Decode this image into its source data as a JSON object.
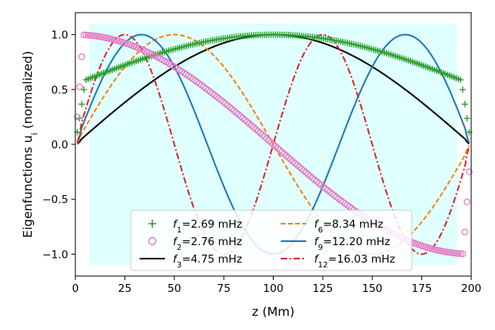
{
  "chart_data": {
    "type": "line",
    "title": "",
    "xlabel": "z (Mm)",
    "ylabel": "Eigenfunctions u",
    "ylabel_sub": "i",
    "ylabel_suffix": " (normalized)",
    "xlim": [
      0,
      200
    ],
    "ylim": [
      -1.2,
      1.2
    ],
    "x_ticks": [
      0,
      25,
      50,
      75,
      100,
      125,
      150,
      175,
      200
    ],
    "y_ticks": [
      -1.0,
      -0.5,
      0.0,
      0.5,
      1.0
    ],
    "x_tick_labels": [
      "0",
      "25",
      "50",
      "75",
      "100",
      "125",
      "150",
      "175",
      "200"
    ],
    "y_tick_labels": [
      "−1.0",
      "−0.5",
      "0.0",
      "0.5",
      "1.0"
    ],
    "grid": false,
    "legend_position": "lower-center",
    "shaded_region": {
      "x": [
        7,
        193
      ],
      "y": [
        -1.1,
        1.1
      ],
      "color": "#e0ffff"
    },
    "series": [
      {
        "name": "f1",
        "label_sub": "1",
        "label_value": "=2.69 mHz",
        "marker": "plus",
        "color": "#2ca02c",
        "style": "markers",
        "description": "sin(pi*z/200) with steep rise near boundaries",
        "x_range": [
          0,
          200
        ],
        "peak": 1.0,
        "peak_z": 100,
        "edge_value": 0.0
      },
      {
        "name": "f2",
        "label_sub": "2",
        "label_value": "=2.76 mHz",
        "marker": "circle-open",
        "color": "#e377c2",
        "style": "markers",
        "description": "antisymmetric mode, ~cos(pi*z/200)",
        "x_range": [
          0,
          200
        ],
        "start_value": 1.0,
        "end_value": -1.0
      },
      {
        "name": "f3",
        "label_sub": "3",
        "label_value": "=4.75 mHz",
        "color": "#000000",
        "style": "solid",
        "mode": 1
      },
      {
        "name": "f6",
        "label_sub": "6",
        "label_value": "=8.34 mHz",
        "color": "#ff7f0e",
        "style": "dashed",
        "mode": 2
      },
      {
        "name": "f9",
        "label_sub": "9",
        "label_value": "=12.20 mHz",
        "color": "#1f77b4",
        "style": "solid",
        "mode": 3
      },
      {
        "name": "f12",
        "label_sub": "12",
        "label_value": "=16.03 mHz",
        "color": "#d62728",
        "style": "dashdot",
        "mode": 4
      }
    ]
  }
}
